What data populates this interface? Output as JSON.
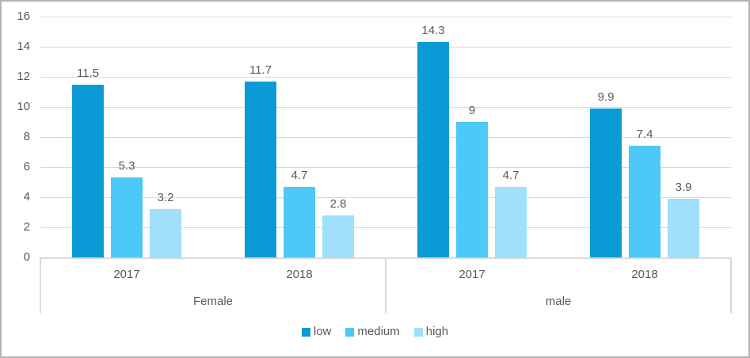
{
  "chart_data": {
    "type": "bar",
    "title": "",
    "grid": true,
    "ylim": [
      0,
      16
    ],
    "ytick_step": 2,
    "y_tick_labels": [
      "0",
      "2",
      "4",
      "6",
      "8",
      "10",
      "12",
      "14",
      "16"
    ],
    "legend_position": "bottom",
    "value_labels_shown": true,
    "series": [
      {
        "name": "low",
        "color": "#0a9ad6"
      },
      {
        "name": "medium",
        "color": "#4dc9f7"
      },
      {
        "name": "high",
        "color": "#a0e0fb"
      }
    ],
    "groups": [
      {
        "category": "Female",
        "subcategories": [
          {
            "label": "2017",
            "values": [
              11.5,
              5.3,
              3.2
            ]
          },
          {
            "label": "2018",
            "values": [
              11.7,
              4.7,
              2.8
            ]
          }
        ]
      },
      {
        "category": "male",
        "subcategories": [
          {
            "label": "2017",
            "values": [
              14.3,
              9,
              4.7
            ]
          },
          {
            "label": "2018",
            "values": [
              9.9,
              7.4,
              3.9
            ]
          }
        ]
      }
    ],
    "colors": {
      "grid": "#d9d9d9",
      "axis_text": "#595959",
      "frame_border": "#b3b3b3"
    }
  }
}
